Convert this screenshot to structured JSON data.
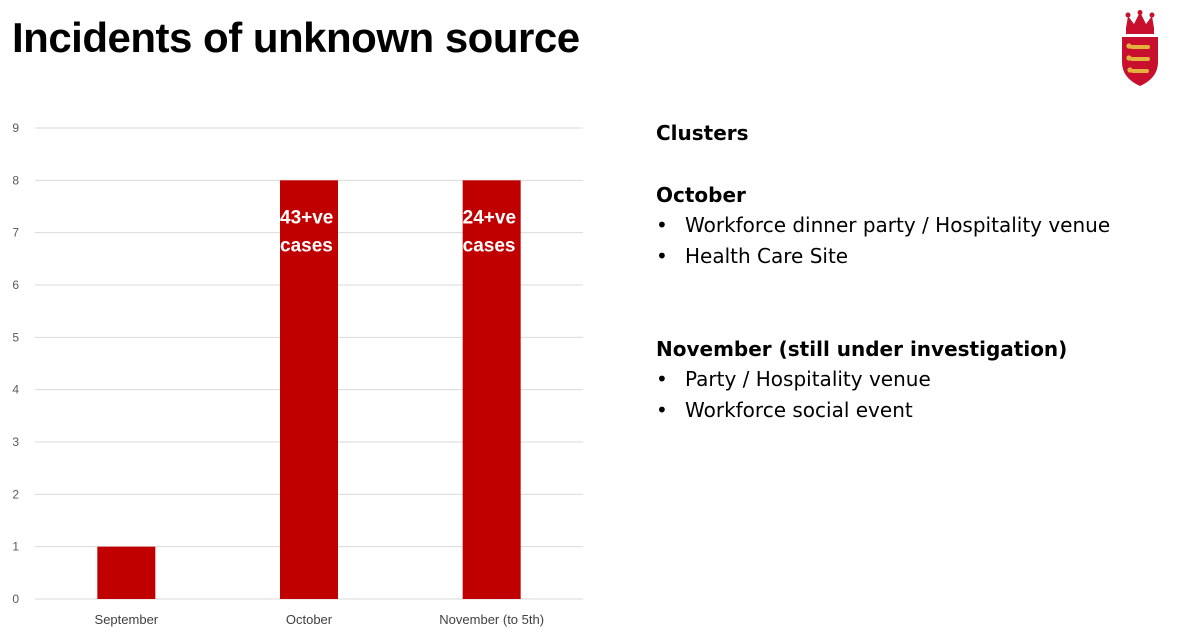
{
  "title": "Incidents of unknown source",
  "colors": {
    "bar": "#C00000",
    "grid": "#D9D9D9",
    "crest": "#C8102E",
    "crest_gold": "#E3B23C"
  },
  "icons": {
    "crest": "jersey-crest-icon",
    "bullet": "bullet-icon"
  },
  "chart_data": {
    "type": "bar",
    "categories": [
      "September",
      "October",
      "November (to 5th)"
    ],
    "values": [
      1,
      8,
      8
    ],
    "bar_labels": [
      [],
      [
        "43+ve",
        "cases"
      ],
      [
        "24+ve",
        "cases"
      ]
    ],
    "title": "",
    "xlabel": "",
    "ylabel": "",
    "ylim": [
      0,
      9
    ],
    "yticks": [
      0,
      1,
      2,
      3,
      4,
      5,
      6,
      7,
      8,
      9
    ],
    "grid": true,
    "legend": "none"
  },
  "panel": {
    "heading": "Clusters",
    "groups": [
      {
        "heading": "October",
        "items": [
          "Workforce dinner party / Hospitality venue",
          "Health Care Site"
        ]
      },
      {
        "heading": "November (still under investigation)",
        "items": [
          "Party / Hospitality venue",
          "Workforce social event"
        ]
      }
    ],
    "bullet": "•"
  }
}
